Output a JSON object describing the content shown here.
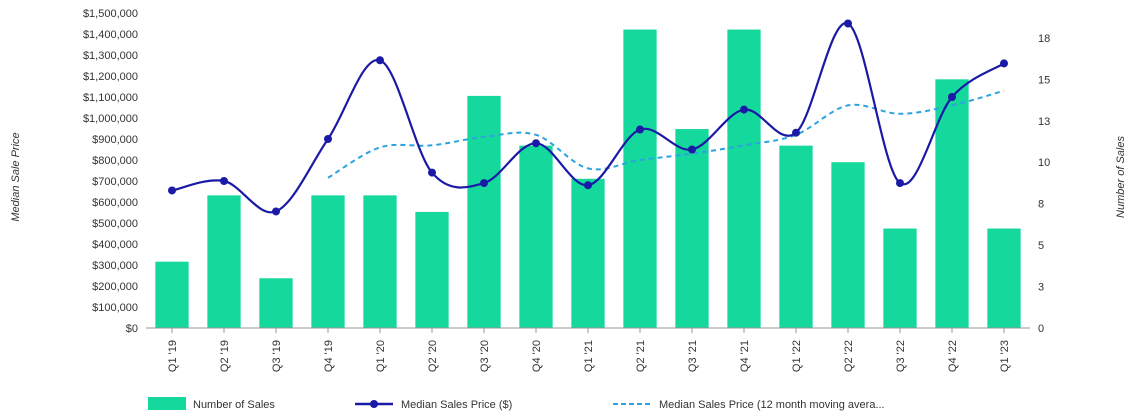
{
  "chart_data": {
    "type": "bar",
    "categories": [
      "Q1 '19",
      "Q2 '19",
      "Q3 '19",
      "Q4 '19",
      "Q1 '20",
      "Q2 '20",
      "Q3 '20",
      "Q4 '20",
      "Q1 '21",
      "Q2 '21",
      "Q3 '21",
      "Q4 '21",
      "Q1 '22",
      "Q2 '22",
      "Q3 '22",
      "Q4 '22",
      "Q1 '23"
    ],
    "ylabel": "Median Sale Price",
    "y2label": "Number of Sales",
    "ylim": [
      0,
      1500000
    ],
    "y2lim": [
      0,
      19
    ],
    "y_ticks": [
      "$0",
      "$100,000",
      "$200,000",
      "$300,000",
      "$400,000",
      "$500,000",
      "$600,000",
      "$700,000",
      "$800,000",
      "$900,000",
      "$1,000,000",
      "$1,100,000",
      "$1,200,000",
      "$1,300,000",
      "$1,400,000",
      "$1,500,000"
    ],
    "y2_ticks": [
      {
        "label": "0",
        "value": 0
      },
      {
        "label": "3",
        "value": 2.5
      },
      {
        "label": "5",
        "value": 5
      },
      {
        "label": "8",
        "value": 7.5
      },
      {
        "label": "10",
        "value": 10
      },
      {
        "label": "13",
        "value": 12.5
      },
      {
        "label": "15",
        "value": 15
      },
      {
        "label": "18",
        "value": 17.5
      }
    ],
    "grid": false,
    "legend_position": "bottom",
    "series": [
      {
        "name": "Number of Sales",
        "type": "bar",
        "axis": "right",
        "color": "#14d89c",
        "values": [
          4,
          8,
          3,
          8,
          8,
          7,
          14,
          11,
          9,
          18,
          12,
          18,
          11,
          10,
          6,
          15,
          6
        ]
      },
      {
        "name": "Median Sales Price ($)",
        "type": "line",
        "axis": "left",
        "color": "#1a1aa6",
        "values": [
          655000,
          700000,
          555000,
          900000,
          1275000,
          740000,
          690000,
          880000,
          680000,
          945000,
          850000,
          1040000,
          930000,
          1450000,
          690000,
          1100000,
          1260000
        ]
      },
      {
        "name": "Median Sales Price (12 month moving avera...",
        "type": "line",
        "style": "dashed",
        "axis": "left",
        "color": "#2aa3e0",
        "values": [
          null,
          null,
          null,
          715000,
          860000,
          870000,
          910000,
          920000,
          760000,
          800000,
          830000,
          870000,
          920000,
          1060000,
          1020000,
          1060000,
          1130000
        ]
      }
    ]
  }
}
